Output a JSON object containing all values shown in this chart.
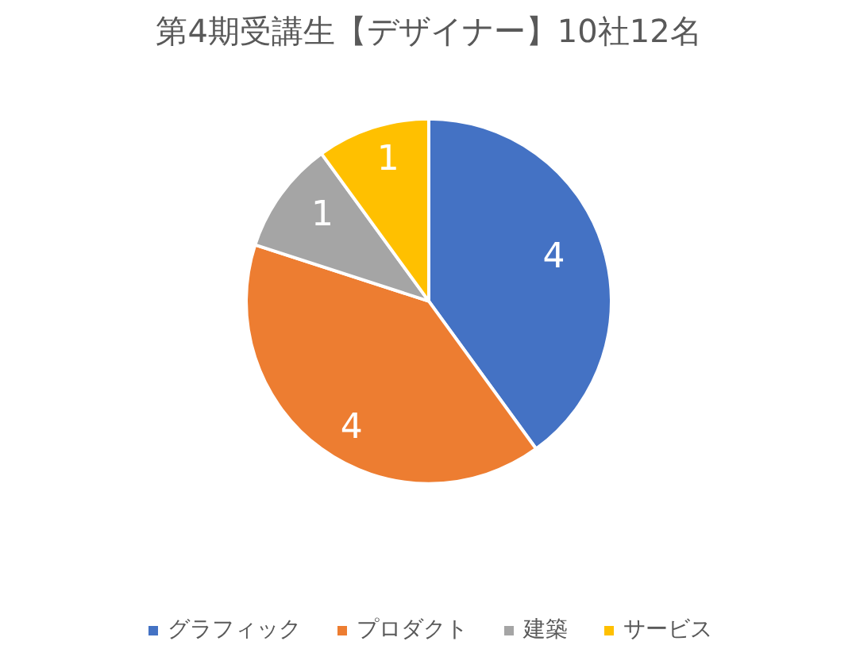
{
  "chart_data": {
    "type": "pie",
    "title": "第4期受講生【デザイナー】10社12名",
    "categories": [
      "グラフィック",
      "プロダクト",
      "建築",
      "サービス"
    ],
    "values": [
      4,
      4,
      1,
      1
    ],
    "colors": [
      "#4472c4",
      "#ed7d31",
      "#a5a5a5",
      "#ffc000"
    ],
    "data_labels": true,
    "legend": "bottom"
  }
}
